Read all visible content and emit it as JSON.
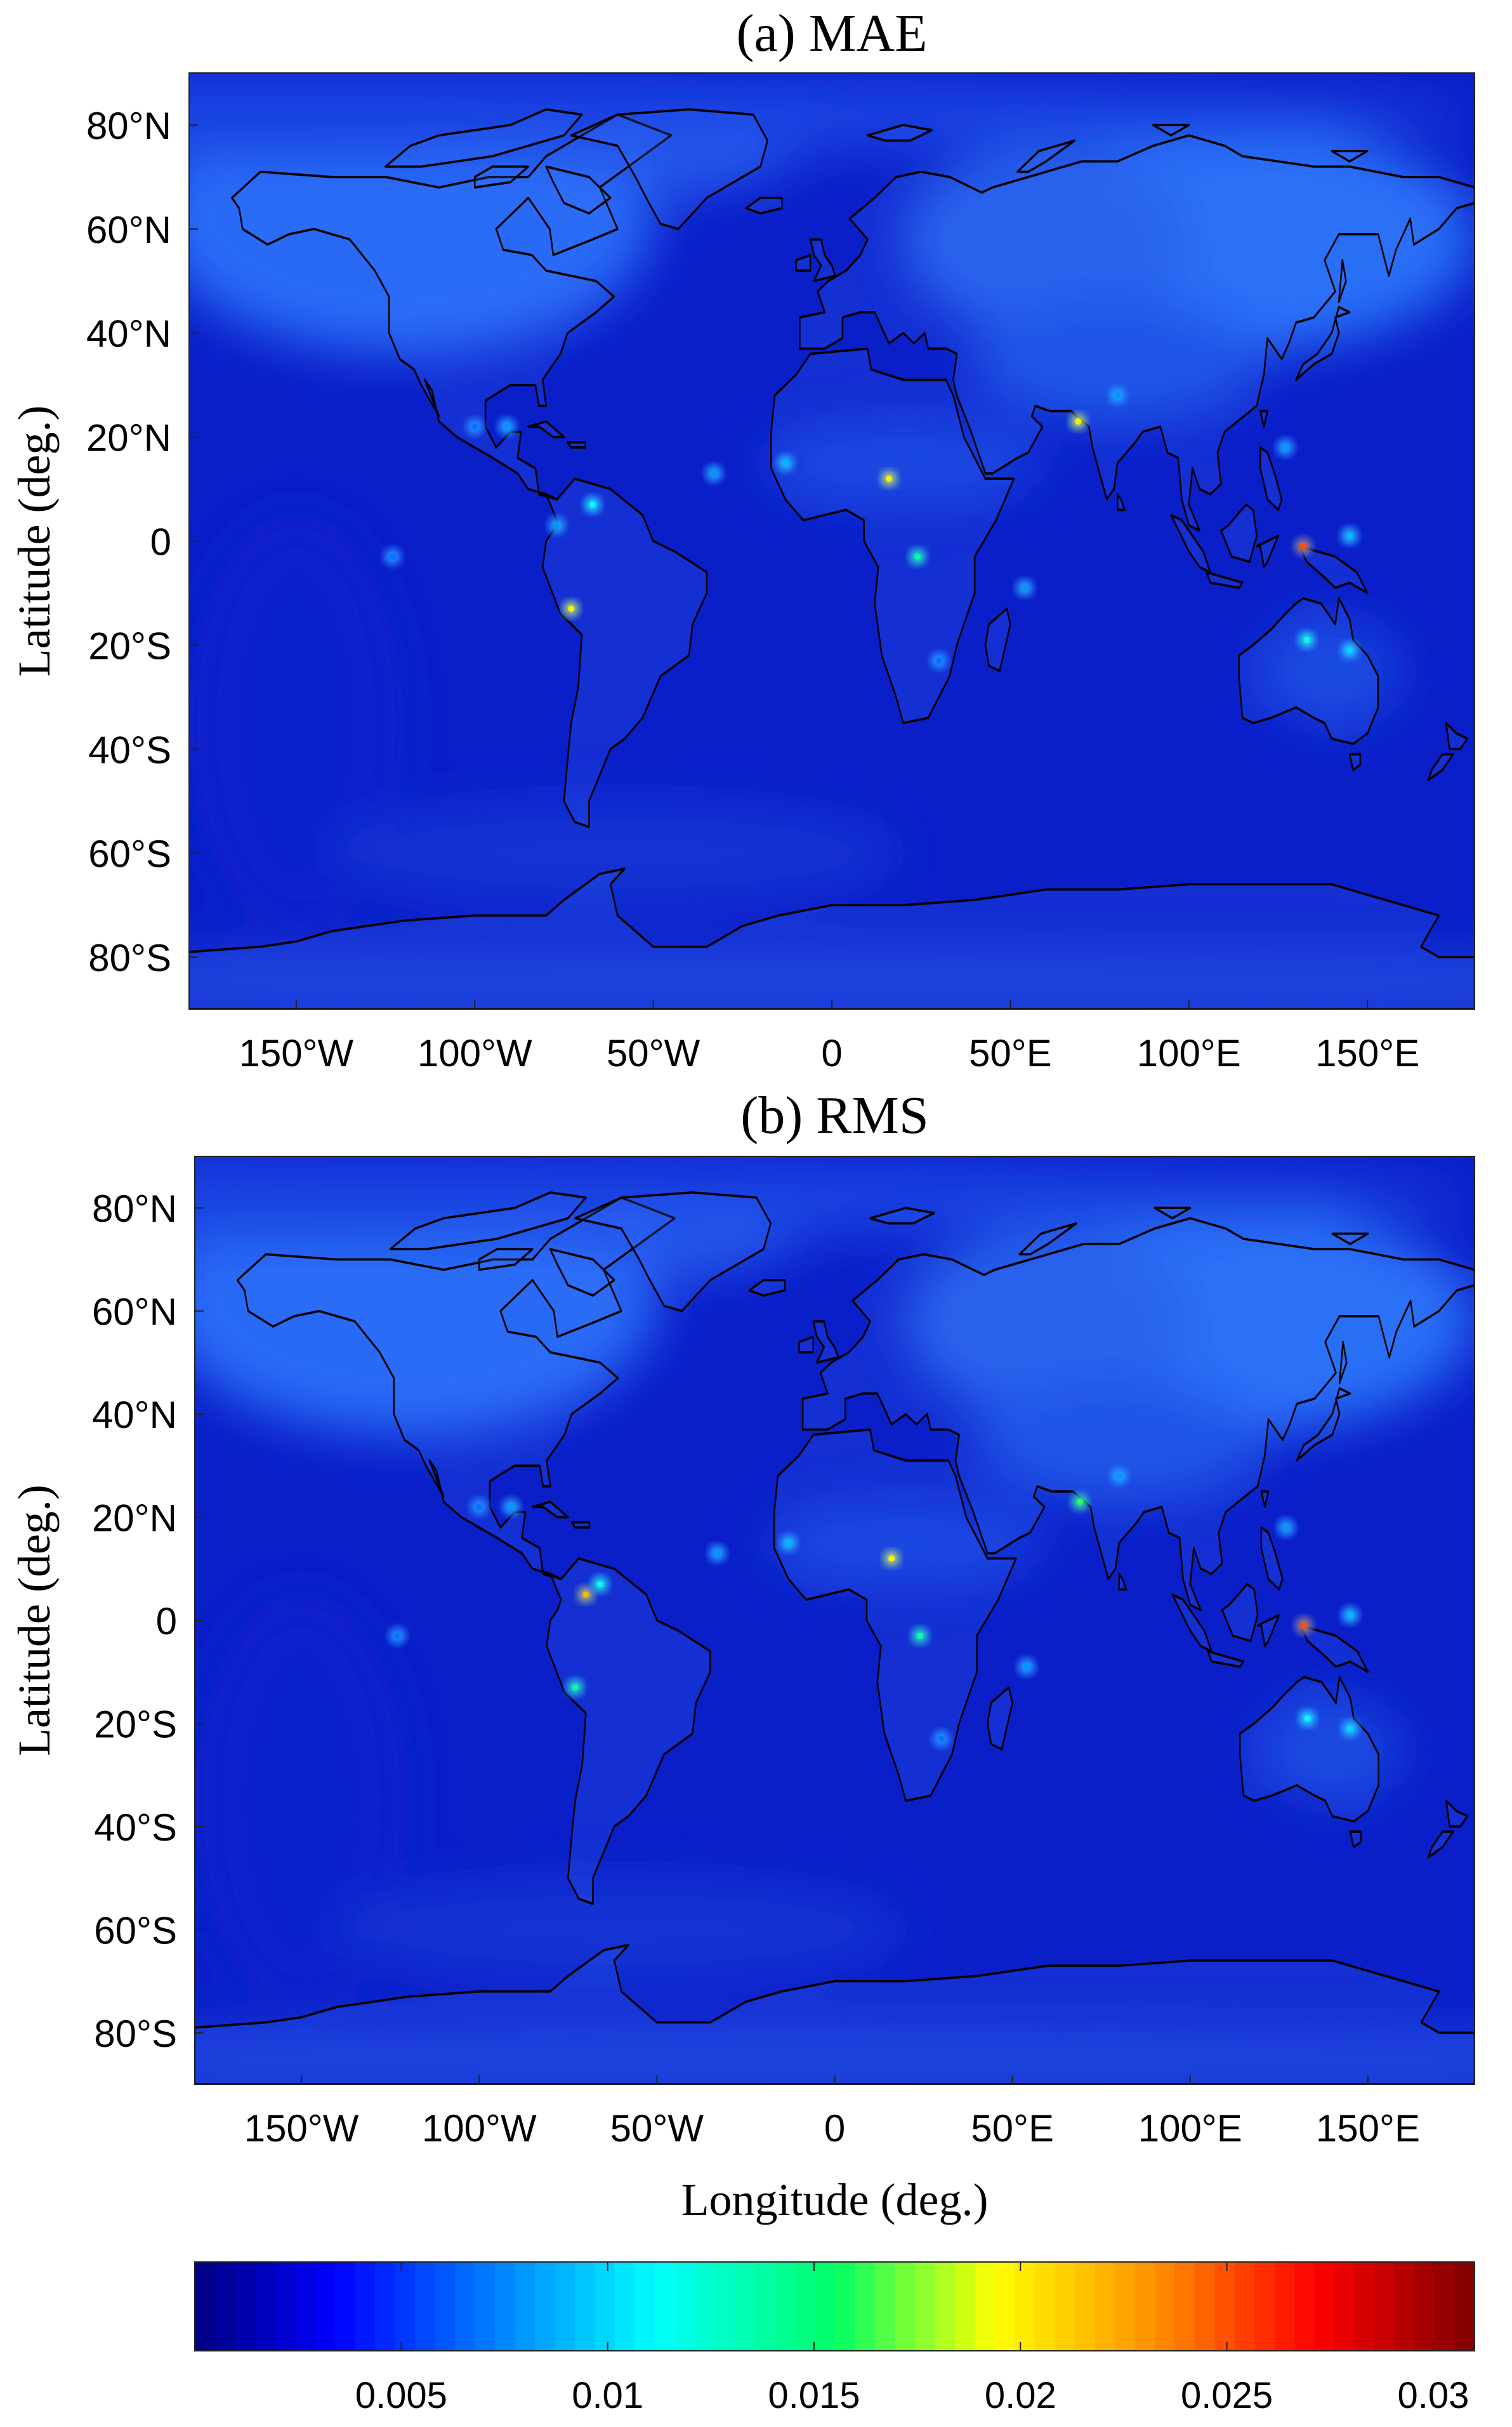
{
  "figure": {
    "panels": [
      {
        "title": "(a) MAE",
        "ylabel": "Latitude (deg.)",
        "xlabel": "",
        "lat_ticks": [
          "80°N",
          "60°N",
          "40°N",
          "20°N",
          "0",
          "20°S",
          "40°S",
          "60°S",
          "80°S"
        ],
        "lon_ticks": [
          "150°W",
          "100°W",
          "50°W",
          "0",
          "50°E",
          "100°E",
          "150°E"
        ],
        "hotspots": [
          {
            "lon": 16,
            "lat": 12,
            "value": 0.02
          },
          {
            "lon": 24,
            "lat": -3,
            "value": 0.014
          },
          {
            "lon": 69,
            "lat": 23,
            "value": 0.02
          },
          {
            "lon": 80,
            "lat": 28,
            "value": 0.008
          },
          {
            "lon": 132,
            "lat": -1,
            "value": 0.025
          },
          {
            "lon": 133,
            "lat": -19,
            "value": 0.012
          },
          {
            "lon": 145,
            "lat": -21,
            "value": 0.01
          },
          {
            "lon": 127,
            "lat": 18,
            "value": 0.008
          },
          {
            "lon": 145,
            "lat": 1,
            "value": 0.009
          },
          {
            "lon": -73,
            "lat": -13,
            "value": 0.02
          },
          {
            "lon": -67,
            "lat": 7,
            "value": 0.011
          },
          {
            "lon": -77,
            "lat": 3,
            "value": 0.008
          },
          {
            "lon": -13,
            "lat": 15,
            "value": 0.009
          },
          {
            "lon": -33,
            "lat": 13,
            "value": 0.008
          },
          {
            "lon": -100,
            "lat": 22,
            "value": 0.007
          },
          {
            "lon": -91,
            "lat": 22,
            "value": 0.008
          },
          {
            "lon": 54,
            "lat": -9,
            "value": 0.008
          },
          {
            "lon": 30,
            "lat": -23,
            "value": 0.007
          },
          {
            "lon": -123,
            "lat": -3,
            "value": 0.007
          }
        ]
      },
      {
        "title": "(b) RMS",
        "ylabel": "Latitude (deg.)",
        "xlabel": "Longitude (deg.)",
        "lat_ticks": [
          "80°N",
          "60°N",
          "40°N",
          "20°N",
          "0",
          "20°S",
          "40°S",
          "60°S",
          "80°S"
        ],
        "lon_ticks": [
          "150°W",
          "100°W",
          "50°W",
          "0",
          "50°E",
          "100°E",
          "150°E"
        ],
        "hotspots": [
          {
            "lon": 16,
            "lat": 12,
            "value": 0.02
          },
          {
            "lon": 24,
            "lat": -3,
            "value": 0.014
          },
          {
            "lon": 69,
            "lat": 23,
            "value": 0.016
          },
          {
            "lon": 80,
            "lat": 28,
            "value": 0.008
          },
          {
            "lon": 132,
            "lat": -1,
            "value": 0.025
          },
          {
            "lon": 133,
            "lat": -19,
            "value": 0.011
          },
          {
            "lon": 145,
            "lat": -21,
            "value": 0.01
          },
          {
            "lon": 127,
            "lat": 18,
            "value": 0.008
          },
          {
            "lon": 145,
            "lat": 1,
            "value": 0.009
          },
          {
            "lon": -73,
            "lat": -13,
            "value": 0.014
          },
          {
            "lon": -70,
            "lat": 5,
            "value": 0.022
          },
          {
            "lon": -66,
            "lat": 7,
            "value": 0.012
          },
          {
            "lon": -13,
            "lat": 15,
            "value": 0.009
          },
          {
            "lon": -33,
            "lat": 13,
            "value": 0.008
          },
          {
            "lon": -100,
            "lat": 22,
            "value": 0.007
          },
          {
            "lon": -91,
            "lat": 22,
            "value": 0.008
          },
          {
            "lon": 54,
            "lat": -9,
            "value": 0.008
          },
          {
            "lon": 30,
            "lat": -23,
            "value": 0.007
          },
          {
            "lon": -123,
            "lat": -3,
            "value": 0.007
          }
        ]
      }
    ],
    "colorbar": {
      "colormap": "jet",
      "range": [
        0,
        0.031
      ],
      "tick_labels": [
        "0.005",
        "0.01",
        "0.015",
        "0.02",
        "0.025",
        "0.03"
      ],
      "tick_values": [
        0.005,
        0.01,
        0.015,
        0.02,
        0.025,
        0.03
      ]
    },
    "colors": {
      "ocean": "#0b1fc9",
      "land_cold": "#2a6cff",
      "coastline": "#000000",
      "background": "#ffffff"
    }
  }
}
